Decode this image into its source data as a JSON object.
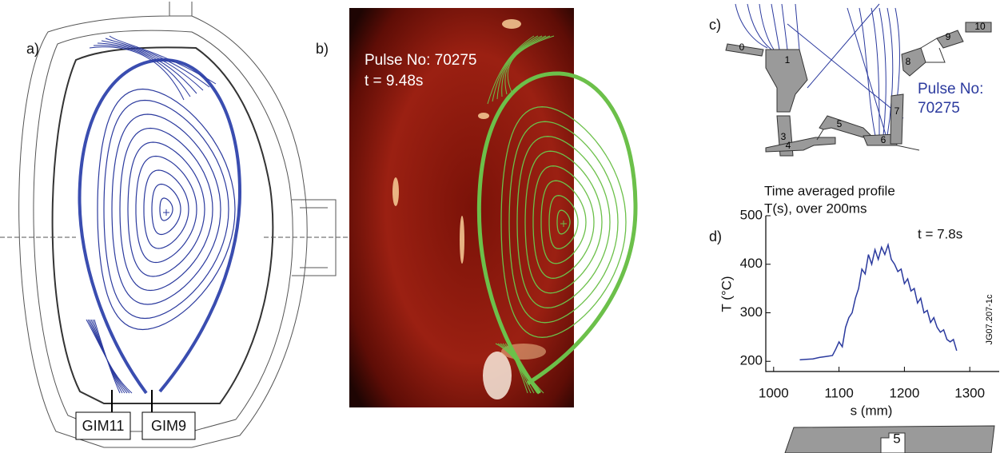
{
  "panels": {
    "a": {
      "label": "a)",
      "gim_left": "GIM11",
      "gim_right": "GIM9"
    },
    "b": {
      "label": "b)",
      "pulse": "Pulse No: 70275",
      "time": "t = 9.48s"
    },
    "c": {
      "label": "c)",
      "pulse_lines": [
        "Pulse No:",
        "70275"
      ],
      "tiles": [
        "0",
        "1",
        "3",
        "4",
        "5",
        "6",
        "7",
        "8",
        "9",
        "10"
      ]
    },
    "d": {
      "label": "d)"
    },
    "bottom_tile": "5"
  },
  "chart_data": {
    "type": "line",
    "title": "Time averaged profile",
    "subtitle": "T(s), over 200ms",
    "annotation": "t = 7.8s",
    "x_label": "s (mm)",
    "y_label": "T (°C)",
    "figure_id": "JG07.207-1c",
    "x": [
      1040,
      1050,
      1060,
      1070,
      1080,
      1090,
      1095,
      1100,
      1105,
      1110,
      1115,
      1120,
      1125,
      1130,
      1135,
      1140,
      1145,
      1150,
      1155,
      1160,
      1165,
      1170,
      1175,
      1180,
      1185,
      1190,
      1195,
      1200,
      1205,
      1210,
      1215,
      1220,
      1225,
      1230,
      1235,
      1240,
      1245,
      1250,
      1255,
      1260,
      1265,
      1270,
      1275,
      1280
    ],
    "values": [
      203,
      204,
      205,
      208,
      210,
      212,
      225,
      240,
      230,
      270,
      290,
      300,
      330,
      350,
      390,
      380,
      420,
      400,
      430,
      410,
      435,
      420,
      440,
      410,
      400,
      385,
      390,
      360,
      370,
      345,
      350,
      320,
      330,
      300,
      305,
      280,
      290,
      270,
      260,
      265,
      245,
      240,
      245,
      222
    ],
    "color": "#2b3a9e",
    "xlim": [
      988,
      1345
    ],
    "ylim": [
      179,
      500
    ],
    "xticks": [
      1000,
      1100,
      1200,
      1300
    ],
    "yticks": [
      200,
      300,
      400,
      500
    ]
  }
}
